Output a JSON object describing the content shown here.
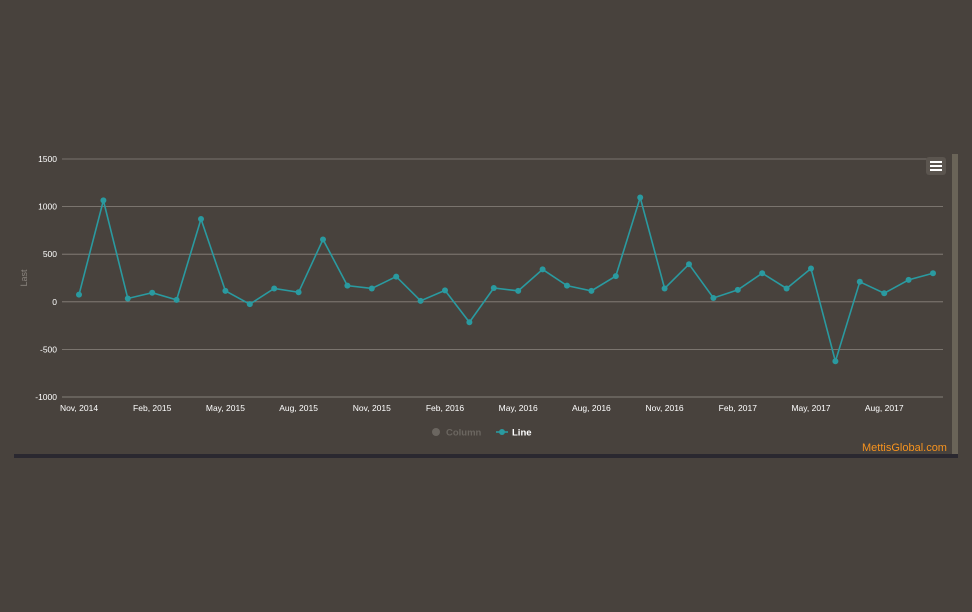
{
  "chart_data": {
    "type": "line",
    "ylabel": "Last",
    "ylim": [
      -1000,
      1500
    ],
    "yticks": [
      1500,
      1000,
      500,
      0,
      -500,
      -1000
    ],
    "xtick_labels": [
      "Nov, 2014",
      "Feb, 2015",
      "May, 2015",
      "Aug, 2015",
      "Nov, 2015",
      "Feb, 2016",
      "May, 2016",
      "Aug, 2016",
      "Nov, 2016",
      "Feb, 2017",
      "May, 2017",
      "Aug, 2017"
    ],
    "series": [
      {
        "name": "Line",
        "color": "#2a9aa0",
        "visible": true,
        "values": [
          75,
          1065,
          35,
          95,
          20,
          870,
          115,
          -25,
          140,
          100,
          655,
          170,
          140,
          265,
          10,
          120,
          -215,
          145,
          115,
          340,
          170,
          115,
          270,
          1095,
          140,
          395,
          40,
          125,
          300,
          140,
          350,
          -625,
          210,
          90,
          230,
          300
        ]
      },
      {
        "name": "Column",
        "color": "#6b6660",
        "visible": false,
        "values": []
      }
    ],
    "grid": true
  },
  "colors": {
    "background": "#48423d",
    "gridline": "#8a847e",
    "axis_text": "#ffffff",
    "credit": "#f7931e"
  },
  "credit": "MettisGlobal.com",
  "menu_icon": "hamburger-menu-icon"
}
